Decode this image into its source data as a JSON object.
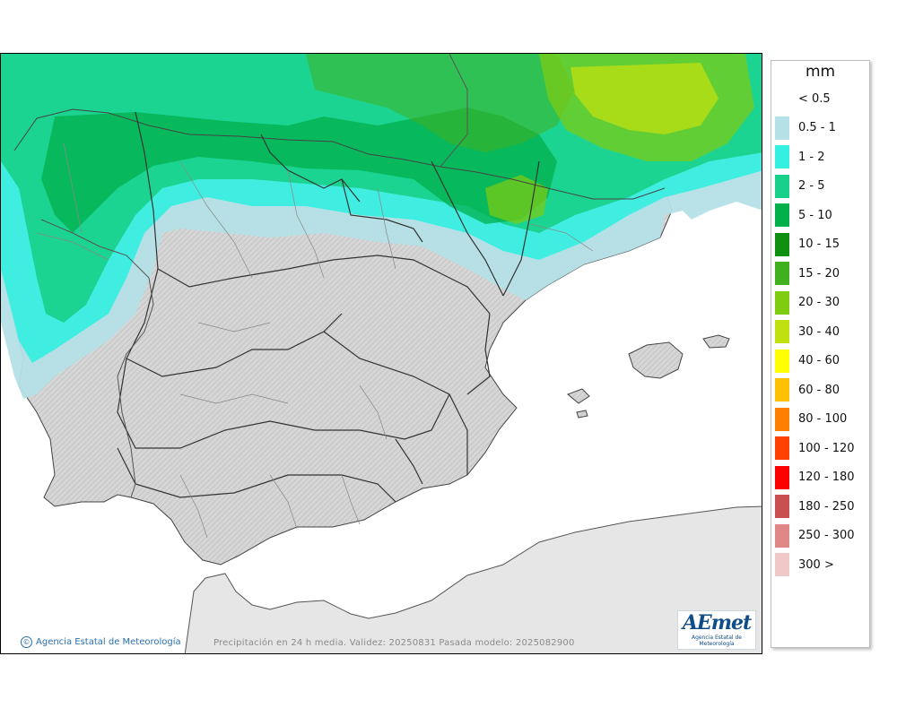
{
  "legend": {
    "unit": "mm",
    "items": [
      {
        "label": "< 0.5",
        "color": "#ffffff"
      },
      {
        "label": "0.5 - 1",
        "color": "#b4e0e6"
      },
      {
        "label": "1 - 2",
        "color": "#33f0e0"
      },
      {
        "label": "2 - 5",
        "color": "#18d08a"
      },
      {
        "label": "5 - 10",
        "color": "#00b04a"
      },
      {
        "label": "10 - 15",
        "color": "#109010"
      },
      {
        "label": "15 - 20",
        "color": "#40b020"
      },
      {
        "label": "20 - 30",
        "color": "#80cc10"
      },
      {
        "label": "30 - 40",
        "color": "#c0e010"
      },
      {
        "label": "40 - 60",
        "color": "#ffff00"
      },
      {
        "label": "60 - 80",
        "color": "#ffc000"
      },
      {
        "label": "80 - 100",
        "color": "#ff8000"
      },
      {
        "label": "100 - 120",
        "color": "#ff4000"
      },
      {
        "label": "120 - 180",
        "color": "#ff0000"
      },
      {
        "label": "180 - 250",
        "color": "#c85050"
      },
      {
        "label": "250 - 300",
        "color": "#e08888"
      },
      {
        "label": "300 >",
        "color": "#f0c8c8"
      }
    ]
  },
  "credit": "Agencia Estatal de Meteorología",
  "caption": "Precipitación en 24 h media. Validez: 20250831 Pasada modelo: 2025082900",
  "logo": {
    "word": "AEmet",
    "sub": "Agencia Estatal de Meteorología"
  },
  "colors": {
    "land": "#d8d8d8",
    "sea": "#ffffff",
    "africa": "#e6e6e6"
  }
}
